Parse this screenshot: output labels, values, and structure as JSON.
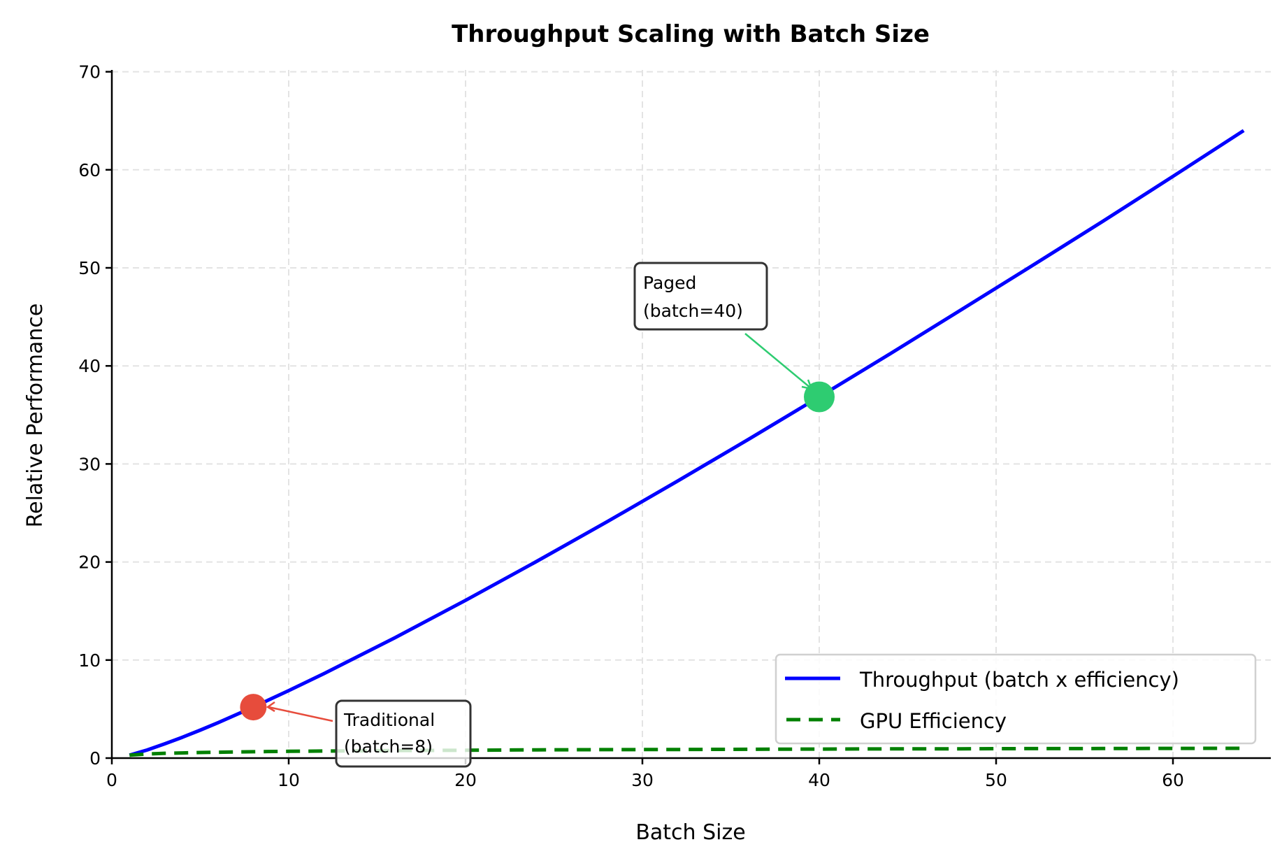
{
  "chart_data": {
    "type": "line",
    "title": "Throughput Scaling with Batch Size",
    "xlabel": "Batch Size",
    "ylabel": "Relative Performance",
    "xlim": [
      0,
      65
    ],
    "ylim": [
      0,
      70
    ],
    "xticks": [
      "0",
      "10",
      "20",
      "30",
      "40",
      "50",
      "60"
    ],
    "yticks": [
      "0",
      "10",
      "20",
      "30",
      "40",
      "50",
      "60",
      "70"
    ],
    "grid": true,
    "legend_position": "lower-right",
    "x": [
      1,
      2,
      3,
      4,
      5,
      6,
      8,
      10,
      12,
      16,
      20,
      24,
      28,
      32,
      36,
      40,
      44,
      48,
      52,
      56,
      60,
      64
    ],
    "series": [
      {
        "name": "Throughput (batch x efficiency)",
        "color": "#0000ff",
        "style": "solid",
        "values": [
          0.3,
          0.83,
          1.46,
          2.13,
          2.85,
          3.61,
          5.2,
          6.88,
          8.62,
          12.27,
          16.09,
          20.04,
          24.1,
          28.27,
          32.51,
          36.84,
          41.23,
          45.69,
          50.18,
          54.71,
          59.33,
          64.0
        ]
      },
      {
        "name": "GPU Efficiency",
        "color": "#008000",
        "style": "dashed",
        "values": [
          0.3,
          0.42,
          0.49,
          0.53,
          0.57,
          0.6,
          0.65,
          0.69,
          0.72,
          0.77,
          0.8,
          0.84,
          0.86,
          0.88,
          0.9,
          0.92,
          0.94,
          0.95,
          0.97,
          0.98,
          0.99,
          1.0
        ]
      }
    ],
    "annotations": [
      {
        "lines": [
          "Traditional",
          "(batch=8)"
        ],
        "x": 8,
        "y": 5.2,
        "color": "#e74c3c"
      },
      {
        "lines": [
          "Paged",
          "(batch=40)"
        ],
        "x": 40,
        "y": 36.84,
        "color": "#2ecc71"
      }
    ]
  }
}
